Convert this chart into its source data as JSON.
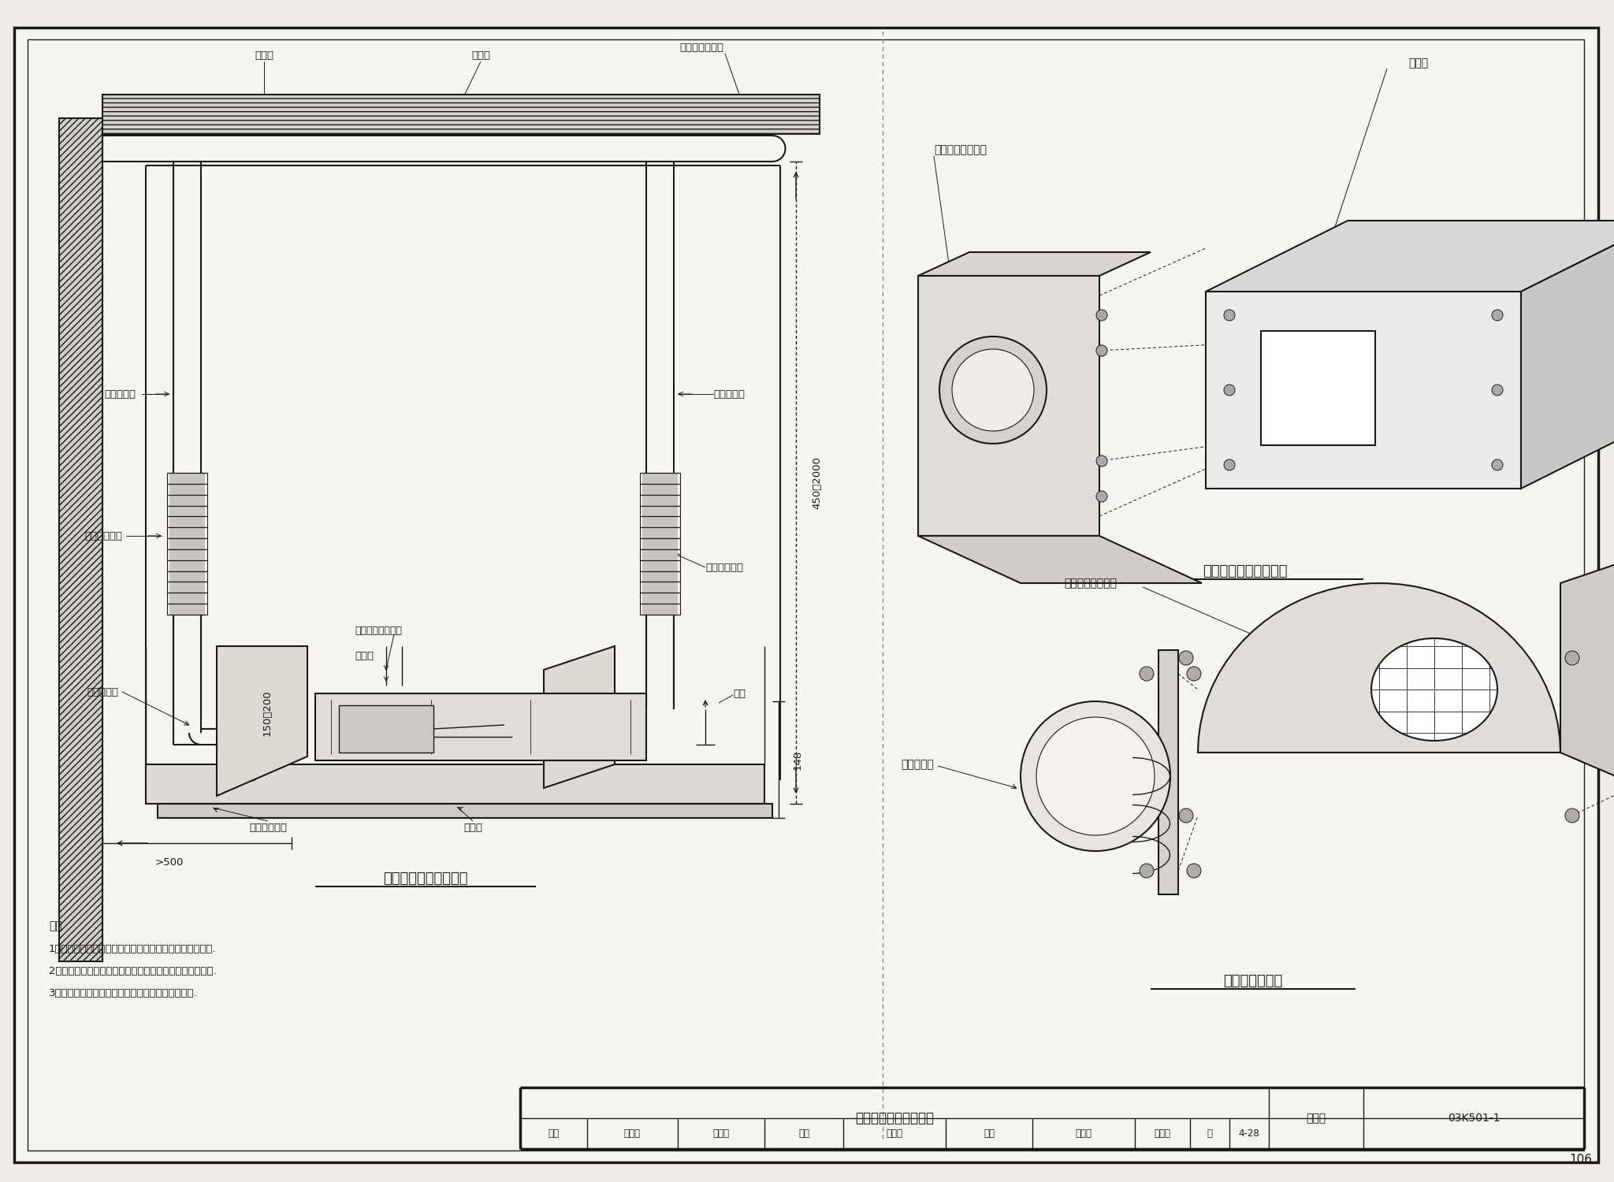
{
  "bg_color": "#f0ede8",
  "paper_color": "#f7f5f0",
  "line_color": "#1a1a1a",
  "line_color_mid": "#333333",
  "fill_light": "#e8e6e0",
  "fill_mid": "#d0cec8",
  "fill_dark": "#b8b6b0",
  "fill_white": "#fafafa",
  "hatch_color": "#555555",
  "title_main": "发生器与空气管的安装",
  "title_right1": "发生器空气管接头安装",
  "title_right2": "进气管接头安装",
  "notes_title": "注：",
  "notes": [
    "1、进气管不能与反射板接触，安装时应考虑设备的热膨胀.",
    "2、空气系统的所有接头应连接紧密，入口处要加装过滤网.",
    "3、本图根据大庆双能高科技有限公司提供资料编制."
  ],
  "footer_title": "发生器与空气管的安装",
  "footer_atlas_label": "图集号",
  "footer_atlas_val": "03K501-1",
  "footer_row1": [
    "审核",
    "朝卫卫",
    "古初次",
    "校对",
    "白小步",
    "设计",
    "戴海洋",
    "戴门门",
    "页",
    "4-28"
  ],
  "page_num": "106",
  "dim_450_2000": "450～2000",
  "dim_150_200": "150～200",
  "dim_148": "148",
  "dim_500": ">500",
  "label_ziroom": "自室外",
  "label_jinqiguan": "进气管",
  "label_jiexia": "接下一个发生器",
  "label_zhiguan_l": "进气管支管",
  "label_zhiguan_r": "进气管支管",
  "label_guijiao_l": "硅胶衬钢软节",
  "label_guijiao_r": "硅胶衬钢软节",
  "label_jinqijietou": "进气管接头",
  "label_fsjinqijt": "发生器进气管接头",
  "label_fashenqi": "发生器",
  "label_diaer": "吊耳",
  "label_fansheban": "反射板",
  "label_fansheban_end": "反射板末端板",
  "label_fsjinqiguan": "发生器进气管接头",
  "label_fsheng": "发生器",
  "label_fushe": "辐射管末端通风罩",
  "label_inlet": "进气管接头"
}
